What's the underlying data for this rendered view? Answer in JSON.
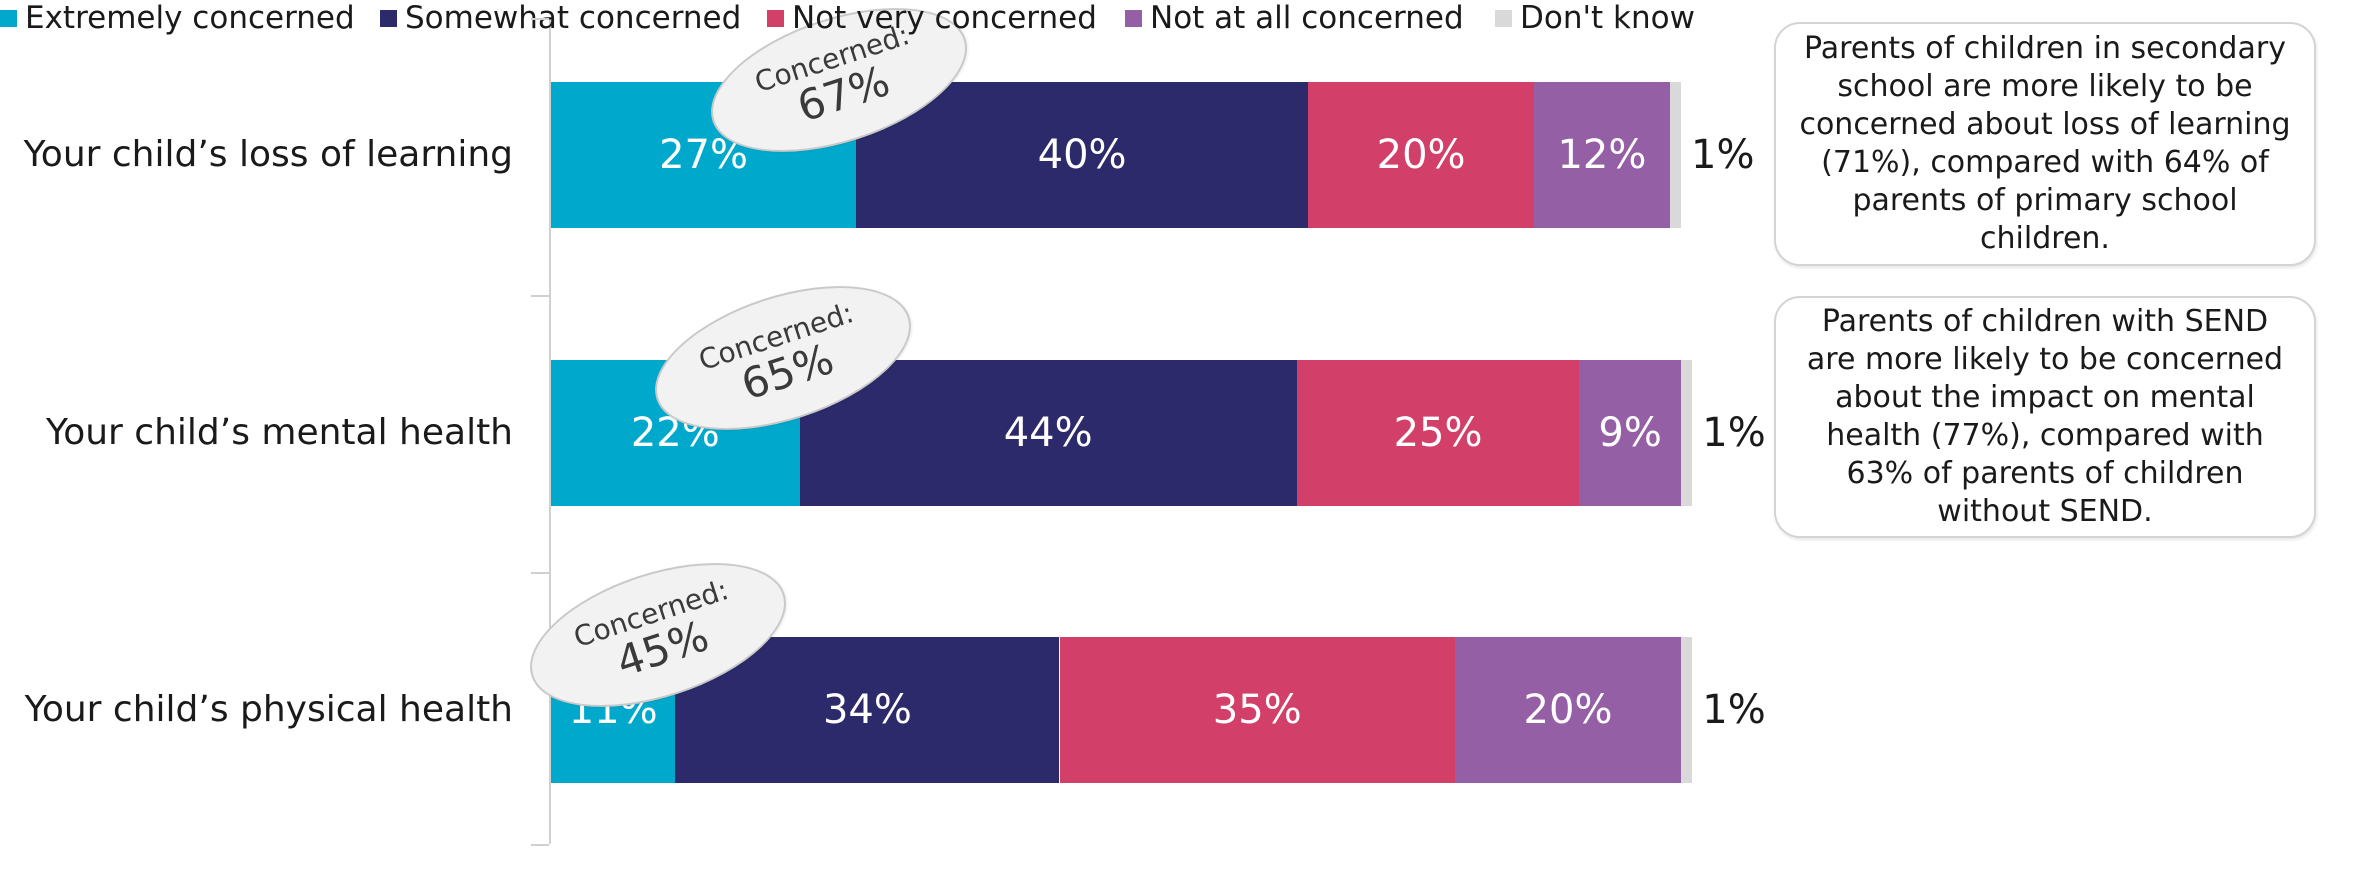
{
  "chart_data": {
    "type": "bar",
    "orientation": "horizontal",
    "stacked": true,
    "categories": [
      "Your child’s loss of learning",
      "Your child’s mental health",
      "Your child’s physical health"
    ],
    "series": [
      {
        "name": "Extremely concerned",
        "color": "#00a9cc",
        "values": [
          27,
          22,
          11
        ],
        "labels": [
          "27%",
          "22%",
          "11%"
        ]
      },
      {
        "name": "Somewhat concerned",
        "color": "#2c2a6b",
        "values": [
          40,
          44,
          34
        ],
        "labels": [
          "40%",
          "44%",
          "34%"
        ]
      },
      {
        "name": "Not very concerned",
        "color": "#d23f68",
        "values": [
          20,
          25,
          35
        ],
        "labels": [
          "20%",
          "25%",
          "35%"
        ]
      },
      {
        "name": "Not at all concerned",
        "color": "#955fa5",
        "values": [
          12,
          9,
          20
        ],
        "labels": [
          "12%",
          "9%",
          "20%"
        ]
      },
      {
        "name": "Don't know",
        "color": "#d9d9d9",
        "values": [
          1,
          1,
          1
        ],
        "labels": [
          "1%",
          "1%",
          "1%"
        ]
      }
    ],
    "xlim": [
      0,
      100
    ],
    "grid": false,
    "legend_position": "bottom",
    "annotations": {
      "concerned_caption": "Concerned:",
      "concerned_values": [
        "67%",
        "65%",
        "45%"
      ]
    }
  },
  "notes": [
    "Parents of children in secondary school are more likely to be concerned about loss of learning (71%), compared with 64% of parents of primary school children.",
    "Parents of children with SEND are more likely to be concerned about the impact on mental health (77%), compared with 63% of parents of children without SEND."
  ]
}
